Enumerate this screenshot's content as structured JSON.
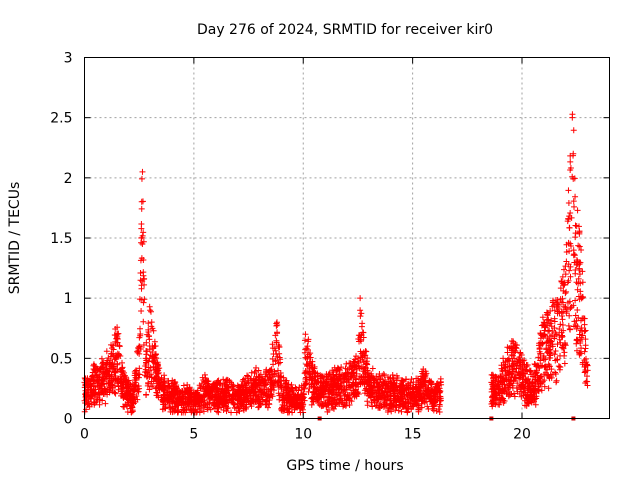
{
  "chart_data": {
    "type": "scatter",
    "title": "Day 276 of 2024, SRMTID for receiver kir0",
    "xlabel": "GPS time / hours",
    "ylabel": "SRMTID / TECUs",
    "xlim": [
      0,
      24
    ],
    "ylim": [
      0,
      3
    ],
    "x_ticks": [
      0,
      5,
      10,
      15,
      20
    ],
    "x_tick_labels": [
      "0",
      "5",
      "10",
      "15",
      "20"
    ],
    "y_ticks": [
      0,
      0.5,
      1,
      1.5,
      2,
      2.5,
      3
    ],
    "y_tick_labels": [
      "0",
      "0.5",
      "1",
      "1.5",
      "2",
      "2.5",
      "3"
    ],
    "grid": true,
    "marker": "plus",
    "marker_color": "#ff0000",
    "gap_marker_x": [
      10.75,
      18.6,
      22.35
    ],
    "segments": [
      {
        "start": 0.0,
        "end": 16.3,
        "density": 170
      },
      {
        "start": 18.6,
        "end": 23.0,
        "density": 170
      }
    ],
    "series": [
      {
        "name": "SRMTID",
        "x": [
          0.0,
          0.5,
          1.0,
          1.5,
          1.8,
          2.2,
          2.5,
          2.6,
          2.65,
          2.8,
          3.0,
          3.2,
          3.5,
          4.0,
          4.5,
          5.0,
          5.5,
          6.0,
          6.5,
          7.0,
          7.5,
          8.0,
          8.5,
          8.8,
          9.0,
          9.5,
          10.0,
          10.1,
          10.5,
          11.0,
          11.5,
          12.0,
          12.5,
          12.6,
          13.0,
          13.5,
          14.0,
          14.5,
          15.0,
          15.5,
          16.0,
          16.3,
          18.6,
          19.0,
          19.5,
          20.0,
          20.5,
          21.0,
          21.5,
          22.0,
          22.3,
          22.5,
          22.7,
          23.0
        ],
        "y": [
          0.3,
          0.4,
          0.45,
          0.7,
          0.35,
          0.2,
          0.6,
          1.5,
          2.05,
          0.5,
          0.9,
          0.6,
          0.3,
          0.25,
          0.22,
          0.18,
          0.3,
          0.25,
          0.28,
          0.22,
          0.3,
          0.35,
          0.4,
          0.8,
          0.28,
          0.22,
          0.2,
          0.7,
          0.35,
          0.3,
          0.35,
          0.38,
          0.5,
          0.9,
          0.35,
          0.3,
          0.3,
          0.28,
          0.25,
          0.35,
          0.22,
          0.28,
          0.3,
          0.35,
          0.6,
          0.45,
          0.3,
          0.8,
          0.9,
          1.2,
          2.5,
          1.6,
          1.4,
          0.4
        ]
      }
    ]
  }
}
